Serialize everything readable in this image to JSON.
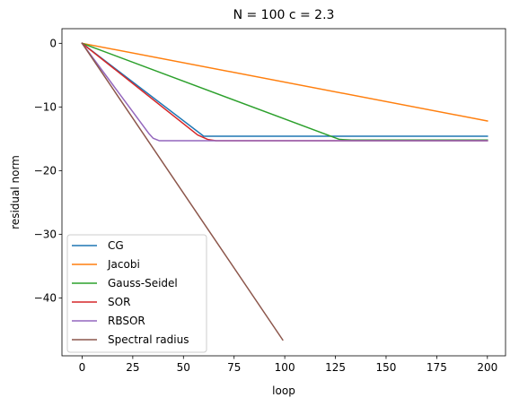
{
  "chart_data": {
    "type": "line",
    "title": "N = 100 c = 2.3",
    "xlabel": "loop",
    "ylabel": "residual norm",
    "xlim": [
      -9.95,
      208.95
    ],
    "ylim": [
      -49.1,
      2.3
    ],
    "xticks": [
      0,
      25,
      50,
      75,
      100,
      125,
      150,
      175,
      200
    ],
    "yticks": [
      0,
      -10,
      -20,
      -30,
      -40
    ],
    "xtick_labels": [
      "0",
      "25",
      "50",
      "75",
      "100",
      "125",
      "150",
      "175",
      "200"
    ],
    "ytick_labels": [
      "0",
      "−10",
      "−20",
      "−30",
      "−40"
    ],
    "grid": false,
    "legend_position": "lower left",
    "series": [
      {
        "name": "CG",
        "color": "#1f77b4",
        "points": [
          [
            0,
            0
          ],
          [
            60,
            -14.6
          ],
          [
            200,
            -14.6
          ]
        ]
      },
      {
        "name": "Jacobi",
        "color": "#ff7f0e",
        "points": [
          [
            0,
            0
          ],
          [
            200,
            -12.2
          ]
        ]
      },
      {
        "name": "Gauss-Seidel",
        "color": "#2ca02c",
        "points": [
          [
            0,
            0
          ],
          [
            127,
            -15.1
          ],
          [
            133,
            -15.2
          ],
          [
            200,
            -15.2
          ]
        ]
      },
      {
        "name": "SOR",
        "color": "#d62728",
        "points": [
          [
            0,
            0
          ],
          [
            57,
            -14.4
          ],
          [
            62,
            -15.1
          ],
          [
            66,
            -15.3
          ],
          [
            200,
            -15.3
          ]
        ]
      },
      {
        "name": "RBSOR",
        "color": "#9467bd",
        "points": [
          [
            0,
            0
          ],
          [
            33,
            -14.2
          ],
          [
            35,
            -14.9
          ],
          [
            38,
            -15.3
          ],
          [
            200,
            -15.3
          ]
        ]
      },
      {
        "name": "Spectral radius",
        "color": "#8c564b",
        "points": [
          [
            0,
            0
          ],
          [
            99,
            -46.6
          ]
        ]
      }
    ]
  }
}
